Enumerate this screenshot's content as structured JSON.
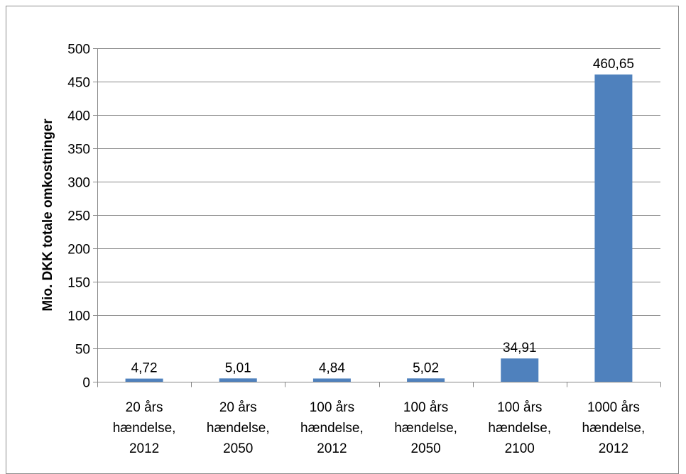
{
  "chart_data": {
    "type": "bar",
    "categories": [
      [
        "20 års",
        "hændelse,",
        "2012"
      ],
      [
        "20 års",
        "hændelse,",
        "2050"
      ],
      [
        "100 års",
        "hændelse,",
        "2012"
      ],
      [
        "100 års",
        "hændelse,",
        "2050"
      ],
      [
        "100 års",
        "hændelse,",
        "2100"
      ],
      [
        "1000 års",
        "hændelse,",
        "2012"
      ]
    ],
    "values": [
      4.72,
      5.01,
      4.84,
      5.02,
      34.91,
      460.65
    ],
    "data_labels": [
      "4,72",
      "5,01",
      "4,84",
      "5,02",
      "34,91",
      "460,65"
    ],
    "title": "",
    "xlabel": "",
    "ylabel": "Mio. DKK totale omkostninger",
    "ylim": [
      0,
      500
    ],
    "yticks": [
      0,
      50,
      100,
      150,
      200,
      250,
      300,
      350,
      400,
      450,
      500
    ],
    "grid": true,
    "bar_color": "#4f81bd",
    "grid_color": "#868686"
  }
}
